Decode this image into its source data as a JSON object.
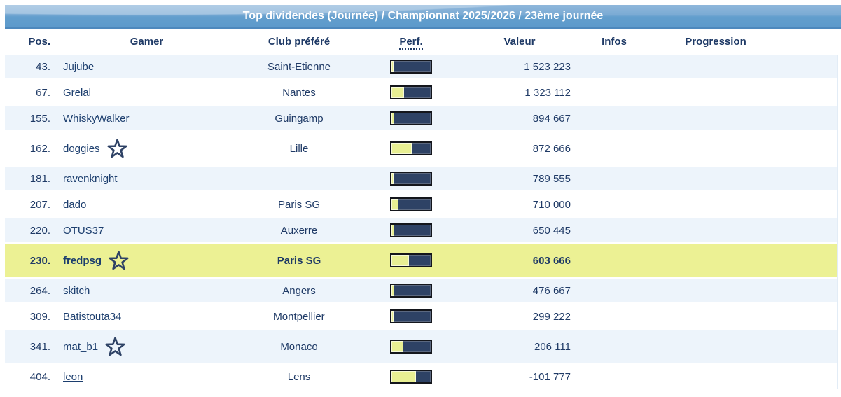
{
  "header": {
    "title": "Top dividendes (Journée) / Championnat 2025/2026 / 23ème journée"
  },
  "columns": {
    "pos": "Pos.",
    "gamer": "Gamer",
    "club": "Club préféré",
    "perf": "Perf.",
    "valeur": "Valeur",
    "infos": "Infos",
    "progression": "Progression"
  },
  "colors": {
    "title_bar_top": "#8FB7DB",
    "title_bar_bottom": "#5D9ACB",
    "row_alt": "#EDF4FB",
    "row_highlight": "#ECF194",
    "text": "#1F3A66",
    "bar_track": "#2E4265",
    "bar_fill": "#E8EF93"
  },
  "icons": {
    "favorite": "star-outline-icon"
  },
  "rows": [
    {
      "pos": "43.",
      "gamer": "Jujube",
      "club": "Saint-Etienne",
      "perf_pct": 6,
      "valeur": "1 523 223",
      "infos": "",
      "progression": "",
      "starred": false,
      "highlighted": false
    },
    {
      "pos": "67.",
      "gamer": "Grelal",
      "club": "Nantes",
      "perf_pct": 33,
      "valeur": "1 323 112",
      "infos": "",
      "progression": "",
      "starred": false,
      "highlighted": false
    },
    {
      "pos": "155.",
      "gamer": "WhiskyWalker",
      "club": "Guingamp",
      "perf_pct": 8,
      "valeur": "894 667",
      "infos": "",
      "progression": "",
      "starred": false,
      "highlighted": false
    },
    {
      "pos": "162.",
      "gamer": "doggies",
      "club": "Lille",
      "perf_pct": 52,
      "valeur": "872 666",
      "infos": "",
      "progression": "",
      "starred": true,
      "highlighted": false
    },
    {
      "pos": "181.",
      "gamer": "ravenknight",
      "club": "",
      "perf_pct": 6,
      "valeur": "789 555",
      "infos": "",
      "progression": "",
      "starred": false,
      "highlighted": false
    },
    {
      "pos": "207.",
      "gamer": "dado",
      "club": "Paris SG",
      "perf_pct": 17,
      "valeur": "710 000",
      "infos": "",
      "progression": "",
      "starred": false,
      "highlighted": false
    },
    {
      "pos": "220.",
      "gamer": "OTUS37",
      "club": "Auxerre",
      "perf_pct": 8,
      "valeur": "650 445",
      "infos": "",
      "progression": "",
      "starred": false,
      "highlighted": false
    },
    {
      "pos": "230.",
      "gamer": "fredpsg",
      "club": "Paris SG",
      "perf_pct": 45,
      "valeur": "603 666",
      "infos": "",
      "progression": "",
      "starred": true,
      "highlighted": true
    },
    {
      "pos": "264.",
      "gamer": "skitch",
      "club": "Angers",
      "perf_pct": 8,
      "valeur": "476 667",
      "infos": "",
      "progression": "",
      "starred": false,
      "highlighted": false
    },
    {
      "pos": "309.",
      "gamer": "Batistouta34",
      "club": "Montpellier",
      "perf_pct": 5,
      "valeur": "299 222",
      "infos": "",
      "progression": "",
      "starred": false,
      "highlighted": false
    },
    {
      "pos": "341.",
      "gamer": "mat_b1",
      "club": "Monaco",
      "perf_pct": 30,
      "valeur": "206 111",
      "infos": "",
      "progression": "",
      "starred": true,
      "highlighted": false
    },
    {
      "pos": "404.",
      "gamer": "leon",
      "club": "Lens",
      "perf_pct": 63,
      "valeur": "-101 777",
      "infos": "",
      "progression": "",
      "starred": false,
      "highlighted": false
    }
  ]
}
